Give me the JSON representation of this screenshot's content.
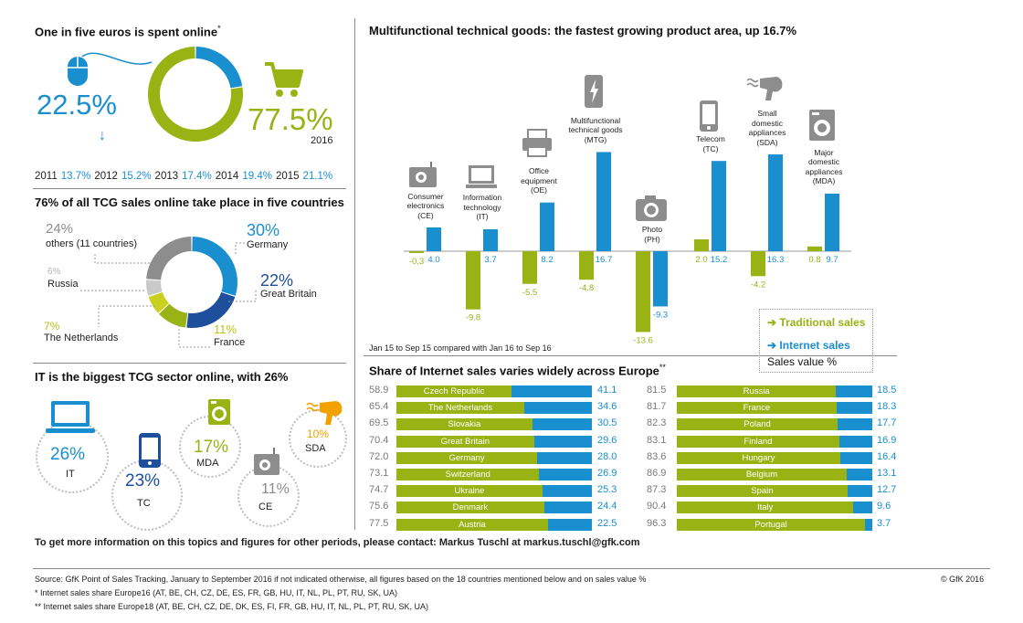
{
  "online_share": {
    "title": "One in five euros is spent online",
    "title_mark": "*",
    "online_pct": "22.5%",
    "offline_pct": "77.5%",
    "year": "2016",
    "history": [
      {
        "year": "2011",
        "value": "13.7%"
      },
      {
        "year": "2012",
        "value": "15.2%"
      },
      {
        "year": "2013",
        "value": "17.4%"
      },
      {
        "year": "2014",
        "value": "19.4%"
      },
      {
        "year": "2015",
        "value": "21.1%"
      }
    ]
  },
  "countries": {
    "title": "76% of all TCG sales online take place in five countries",
    "items": [
      {
        "pct": "30%",
        "name": "Germany"
      },
      {
        "pct": "22%",
        "name": "Great Britain"
      },
      {
        "pct": "11%",
        "name": "France"
      },
      {
        "pct": "7%",
        "name": "The Netherlands"
      },
      {
        "pct": "6%",
        "name": "Russia"
      },
      {
        "pct": "24%",
        "name": "others (11 countries)"
      }
    ]
  },
  "sectors": {
    "title": "IT is the biggest TCG sector online, with 26%",
    "items": [
      {
        "pct": "26%",
        "code": "IT"
      },
      {
        "pct": "23%",
        "code": "TC"
      },
      {
        "pct": "17%",
        "code": "MDA"
      },
      {
        "pct": "11%",
        "code": "CE"
      },
      {
        "pct": "10%",
        "code": "SDA"
      }
    ]
  },
  "growth": {
    "title": "Multifunctional technical goods: the fastest growing product area, up 16.7%",
    "period_note": "Jan 15 to Sep 15 compared with Jan 16 to Sep 16",
    "categories": [
      {
        "label": [
          "Consumer",
          "electronics",
          "(CE)"
        ],
        "trad": "-0.3",
        "net": "4.0"
      },
      {
        "label": [
          "Information",
          "technology",
          "(IT)"
        ],
        "trad": "-9.8",
        "net": "3.7"
      },
      {
        "label": [
          "Office",
          "equipment",
          "(OE)"
        ],
        "trad": "-5.5",
        "net": "8.2"
      },
      {
        "label": [
          "Multifunctional",
          "technical goods",
          "(MTG)"
        ],
        "trad": "-4.8",
        "net": "16.7"
      },
      {
        "label": [
          "Photo",
          "(PH)"
        ],
        "trad": "-13.6",
        "net": "-9.3"
      },
      {
        "label": [
          "Telecom",
          "(TC)"
        ],
        "trad": "2.0",
        "net": "15.2"
      },
      {
        "label": [
          "Small",
          "domestic",
          "appliances",
          "(SDA)"
        ],
        "trad": "-4.2",
        "net": "16.3"
      },
      {
        "label": [
          "Major",
          "domestic",
          "appliances",
          "(MDA)"
        ],
        "trad": "0.8",
        "net": "9.7"
      }
    ],
    "legend": {
      "traditional": "Traditional sales",
      "internet": "Internet sales",
      "unit": "Sales value %"
    }
  },
  "europe": {
    "title": "Share of Internet sales varies widely across Europe",
    "title_mark": "**",
    "left": [
      {
        "country": "Czech Republic",
        "trad": "58.9",
        "net": "41.1"
      },
      {
        "country": "The Netherlands",
        "trad": "65.4",
        "net": "34.6"
      },
      {
        "country": "Slovakia",
        "trad": "69.5",
        "net": "30.5"
      },
      {
        "country": "Great Britain",
        "trad": "70.4",
        "net": "29.6"
      },
      {
        "country": "Germany",
        "trad": "72.0",
        "net": "28.0"
      },
      {
        "country": "Switzerland",
        "trad": "73.1",
        "net": "26.9"
      },
      {
        "country": "Ukraine",
        "trad": "74.7",
        "net": "25.3"
      },
      {
        "country": "Denmark",
        "trad": "75.6",
        "net": "24.4"
      },
      {
        "country": "Austria",
        "trad": "77.5",
        "net": "22.5"
      }
    ],
    "right": [
      {
        "country": "Russia",
        "trad": "81.5",
        "net": "18.5"
      },
      {
        "country": "France",
        "trad": "81.7",
        "net": "18.3"
      },
      {
        "country": "Poland",
        "trad": "82.3",
        "net": "17.7"
      },
      {
        "country": "Finland",
        "trad": "83.1",
        "net": "16.9"
      },
      {
        "country": "Hungary",
        "trad": "83.6",
        "net": "16.4"
      },
      {
        "country": "Belgium",
        "trad": "86.9",
        "net": "13.1"
      },
      {
        "country": "Spain",
        "trad": "87.3",
        "net": "12.7"
      },
      {
        "country": "Italy",
        "trad": "90.4",
        "net": "9.6"
      },
      {
        "country": "Portugal",
        "trad": "96.3",
        "net": "3.7"
      }
    ]
  },
  "contact": "To get more information on this topics and figures for other periods, please contact: Markus Tuschl at markus.tuschl@gfk.com",
  "footer": {
    "source": "Source: GfK Point of Sales Tracking, January to September 2016 if not indicated otherwise, all figures based on the 18 countries mentioned below and on sales value %",
    "note1": "* Internet sales share Europe16 (AT, BE, CH, CZ, DE, ES, FR, GB, HU, IT, NL, PL, PT, RU, SK, UA)",
    "note2": "** Internet sales share Europe18 (AT, BE, CH, CZ, DE, DK, ES, FI, FR, GB, HU, IT, NL, PL, PT, RU, SK, UA)",
    "copyright": "© GfK 2016"
  },
  "colors": {
    "internet": "#1a8fd0",
    "traditional": "#99b214",
    "others": "#8d8d8d",
    "russia": "#c9c9c9",
    "france": "#1d4f9c",
    "netherlands": "#c8d21e"
  },
  "chart_data": [
    {
      "type": "pie",
      "categories": [
        "online",
        "offline"
      ],
      "values": [
        22.5,
        77.5
      ],
      "title": "One in five euros is spent online*"
    },
    {
      "type": "pie",
      "categories": [
        "Germany",
        "Great Britain",
        "France",
        "The Netherlands",
        "Russia",
        "others (11 countries)"
      ],
      "values": [
        30,
        22,
        11,
        7,
        6,
        24
      ],
      "title": "76% of all TCG sales online take place in five countries"
    },
    {
      "type": "bar",
      "title": "Multifunctional technical goods: the fastest growing product area, up 16.7%",
      "categories": [
        "CE",
        "IT",
        "OE",
        "MTG",
        "PH",
        "TC",
        "SDA",
        "MDA"
      ],
      "series": [
        {
          "name": "Traditional sales",
          "values": [
            -0.3,
            -9.8,
            -5.5,
            -4.8,
            -13.6,
            2.0,
            -4.2,
            0.8
          ]
        },
        {
          "name": "Internet sales",
          "values": [
            4.0,
            3.7,
            8.2,
            16.7,
            -9.3,
            15.2,
            16.3,
            9.7
          ]
        }
      ],
      "ylabel": "Sales value %"
    },
    {
      "type": "bar",
      "title": "Share of Internet sales varies widely across Europe**",
      "categories": [
        "Czech Republic",
        "The Netherlands",
        "Slovakia",
        "Great Britain",
        "Germany",
        "Switzerland",
        "Ukraine",
        "Denmark",
        "Austria",
        "Russia",
        "France",
        "Poland",
        "Finland",
        "Hungary",
        "Belgium",
        "Spain",
        "Italy",
        "Portugal"
      ],
      "series": [
        {
          "name": "Traditional sales",
          "values": [
            58.9,
            65.4,
            69.5,
            70.4,
            72.0,
            73.1,
            74.7,
            75.6,
            77.5,
            81.5,
            81.7,
            82.3,
            83.1,
            83.6,
            86.9,
            87.3,
            90.4,
            96.3
          ]
        },
        {
          "name": "Internet sales",
          "values": [
            41.1,
            34.6,
            30.5,
            29.6,
            28.0,
            26.9,
            25.3,
            24.4,
            22.5,
            18.5,
            18.3,
            17.7,
            16.9,
            16.4,
            13.1,
            12.7,
            9.6,
            3.7
          ]
        }
      ]
    }
  ]
}
